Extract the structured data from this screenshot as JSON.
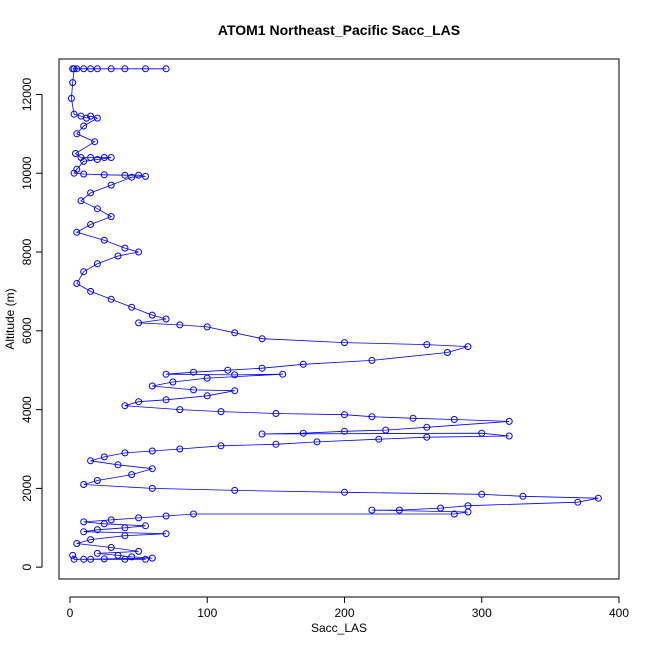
{
  "chart_data": {
    "type": "scatter",
    "title": "ATOM1 Northeast_Pacific Sacc_LAS",
    "xlabel": "Sacc_LAS",
    "ylabel": "Altitude (m)",
    "xlim": [
      -8,
      400
    ],
    "ylim": [
      -300,
      12900
    ],
    "x_ticks": [
      0,
      100,
      200,
      300,
      400
    ],
    "y_ticks": [
      0,
      2000,
      4000,
      6000,
      8000,
      10000,
      12000
    ],
    "grid": false,
    "legend": "none",
    "series_color": "#0000ff",
    "marker": "open-circle",
    "connected": true,
    "series": [
      {
        "points": [
          [
            2,
            12650
          ],
          [
            5,
            12650
          ],
          [
            10,
            12650
          ],
          [
            20,
            12650
          ],
          [
            30,
            12650
          ],
          [
            55,
            12650
          ],
          [
            70,
            12650
          ],
          [
            40,
            12650
          ],
          [
            15,
            12650
          ],
          [
            3,
            12650
          ],
          [
            2,
            12300
          ],
          [
            1,
            11900
          ],
          [
            3,
            11500
          ],
          [
            8,
            11450
          ],
          [
            12,
            11400
          ],
          [
            15,
            11450
          ],
          [
            20,
            11400
          ],
          [
            10,
            11200
          ],
          [
            5,
            11000
          ],
          [
            18,
            10800
          ],
          [
            4,
            10500
          ],
          [
            8,
            10400
          ],
          [
            15,
            10400
          ],
          [
            25,
            10400
          ],
          [
            30,
            10400
          ],
          [
            20,
            10350
          ],
          [
            10,
            10300
          ],
          [
            5,
            10100
          ],
          [
            3,
            10000
          ],
          [
            10,
            9980
          ],
          [
            25,
            9960
          ],
          [
            40,
            9950
          ],
          [
            50,
            9950
          ],
          [
            55,
            9920
          ],
          [
            45,
            9900
          ],
          [
            30,
            9700
          ],
          [
            15,
            9500
          ],
          [
            8,
            9300
          ],
          [
            20,
            9100
          ],
          [
            30,
            8900
          ],
          [
            15,
            8700
          ],
          [
            5,
            8500
          ],
          [
            25,
            8300
          ],
          [
            40,
            8100
          ],
          [
            50,
            8000
          ],
          [
            35,
            7900
          ],
          [
            20,
            7700
          ],
          [
            10,
            7500
          ],
          [
            5,
            7200
          ],
          [
            15,
            7000
          ],
          [
            30,
            6800
          ],
          [
            45,
            6600
          ],
          [
            60,
            6400
          ],
          [
            70,
            6300
          ],
          [
            50,
            6200
          ],
          [
            80,
            6150
          ],
          [
            100,
            6100
          ],
          [
            120,
            5950
          ],
          [
            140,
            5800
          ],
          [
            200,
            5700
          ],
          [
            260,
            5650
          ],
          [
            290,
            5600
          ],
          [
            275,
            5450
          ],
          [
            220,
            5250
          ],
          [
            170,
            5150
          ],
          [
            140,
            5050
          ],
          [
            115,
            5000
          ],
          [
            90,
            4950
          ],
          [
            70,
            4900
          ],
          [
            120,
            4880
          ],
          [
            155,
            4900
          ],
          [
            100,
            4800
          ],
          [
            75,
            4700
          ],
          [
            60,
            4600
          ],
          [
            90,
            4500
          ],
          [
            120,
            4480
          ],
          [
            100,
            4350
          ],
          [
            70,
            4250
          ],
          [
            50,
            4200
          ],
          [
            40,
            4100
          ],
          [
            80,
            4000
          ],
          [
            110,
            3950
          ],
          [
            150,
            3900
          ],
          [
            200,
            3870
          ],
          [
            220,
            3820
          ],
          [
            250,
            3780
          ],
          [
            280,
            3750
          ],
          [
            320,
            3700
          ],
          [
            260,
            3550
          ],
          [
            230,
            3480
          ],
          [
            200,
            3450
          ],
          [
            170,
            3400
          ],
          [
            140,
            3380
          ],
          [
            300,
            3400
          ],
          [
            320,
            3330
          ],
          [
            260,
            3300
          ],
          [
            225,
            3250
          ],
          [
            180,
            3180
          ],
          [
            150,
            3120
          ],
          [
            110,
            3080
          ],
          [
            80,
            3000
          ],
          [
            60,
            2950
          ],
          [
            40,
            2900
          ],
          [
            25,
            2800
          ],
          [
            15,
            2700
          ],
          [
            35,
            2600
          ],
          [
            60,
            2500
          ],
          [
            45,
            2350
          ],
          [
            20,
            2200
          ],
          [
            10,
            2100
          ],
          [
            60,
            2000
          ],
          [
            120,
            1950
          ],
          [
            200,
            1900
          ],
          [
            300,
            1850
          ],
          [
            330,
            1800
          ],
          [
            385,
            1750
          ],
          [
            370,
            1650
          ],
          [
            290,
            1560
          ],
          [
            270,
            1500
          ],
          [
            240,
            1450
          ],
          [
            220,
            1450
          ],
          [
            290,
            1400
          ],
          [
            280,
            1350
          ],
          [
            90,
            1350
          ],
          [
            70,
            1300
          ],
          [
            50,
            1250
          ],
          [
            30,
            1200
          ],
          [
            10,
            1150
          ],
          [
            25,
            1100
          ],
          [
            55,
            1050
          ],
          [
            40,
            1000
          ],
          [
            20,
            950
          ],
          [
            10,
            900
          ],
          [
            70,
            850
          ],
          [
            40,
            800
          ],
          [
            15,
            700
          ],
          [
            5,
            600
          ],
          [
            30,
            500
          ],
          [
            50,
            400
          ],
          [
            20,
            350
          ],
          [
            35,
            300
          ],
          [
            45,
            260
          ],
          [
            60,
            230
          ],
          [
            25,
            210
          ],
          [
            10,
            200
          ],
          [
            40,
            200
          ],
          [
            55,
            200
          ],
          [
            15,
            200
          ],
          [
            3,
            200
          ],
          [
            2,
            300
          ]
        ]
      }
    ]
  }
}
